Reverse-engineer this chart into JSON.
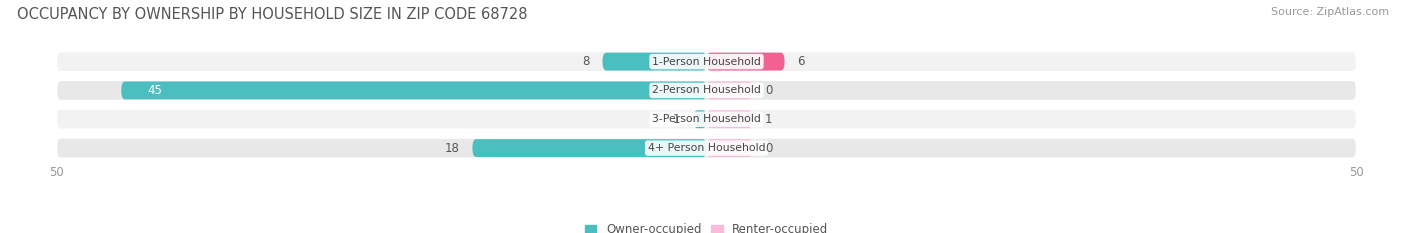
{
  "title": "OCCUPANCY BY OWNERSHIP BY HOUSEHOLD SIZE IN ZIP CODE 68728",
  "source": "Source: ZipAtlas.com",
  "categories": [
    "1-Person Household",
    "2-Person Household",
    "3-Person Household",
    "4+ Person Household"
  ],
  "owner_values": [
    8,
    45,
    1,
    18
  ],
  "renter_values": [
    6,
    0,
    1,
    0
  ],
  "owner_color": "#4BBFBF",
  "renter_color": "#F06292",
  "renter_color_light": "#F8BBD9",
  "row_bg_color_light": "#F2F2F2",
  "row_bg_color_dark": "#E8E8E8",
  "xlim": [
    -50,
    50
  ],
  "title_color": "#555555",
  "title_fontsize": 10.5,
  "source_fontsize": 8,
  "legend_fontsize": 8.5,
  "tick_fontsize": 8.5,
  "value_label_fontsize": 8.5
}
